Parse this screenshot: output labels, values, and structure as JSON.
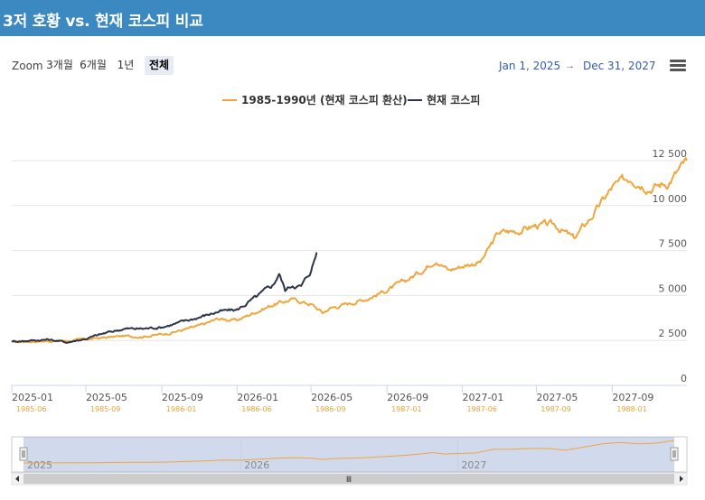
{
  "header": {
    "title": "3저 호황 vs. 현재 코스피 비교"
  },
  "zoom": {
    "label": "Zoom",
    "buttons": [
      "3개월",
      "6개월",
      "1년",
      "전체"
    ],
    "selected": "전체"
  },
  "range": {
    "from": "Jan 1, 2025",
    "arrow": "→",
    "to": "Dec 31, 2027"
  },
  "menu": {
    "icon": "hamburger-menu-icon"
  },
  "colors": {
    "header": "#3c89c2",
    "historical": "#f0a63c",
    "current": "#2b3547"
  },
  "chart_data": {
    "type": "line",
    "ylim": [
      0,
      12500
    ],
    "yticks": [
      0,
      2500,
      5000,
      7500,
      10000,
      12500
    ],
    "ytick_labels": [
      "0",
      "2 500",
      "5 000",
      "7 500",
      "10 000",
      "12 500"
    ],
    "xlim": [
      "2025-01-01",
      "2027-12-31"
    ],
    "xticks": [
      {
        "x": "2025-01-01",
        "label": "2025-01",
        "sub": "1985-06"
      },
      {
        "x": "2025-05-01",
        "label": "2025-05",
        "sub": "1985-09"
      },
      {
        "x": "2025-09-01",
        "label": "2025-09",
        "sub": "1986-01"
      },
      {
        "x": "2026-01-01",
        "label": "2026-01",
        "sub": "1986-06"
      },
      {
        "x": "2026-05-01",
        "label": "2026-05",
        "sub": "1986-09"
      },
      {
        "x": "2026-09-01",
        "label": "2026-09",
        "sub": "1987-01"
      },
      {
        "x": "2027-01-01",
        "label": "2027-01",
        "sub": "1987-06"
      },
      {
        "x": "2027-05-01",
        "label": "2027-05",
        "sub": "1987-09"
      },
      {
        "x": "2027-09-01",
        "label": "2027-09",
        "sub": "1988-01"
      }
    ],
    "grid": true,
    "legend_position": "top-center",
    "series": [
      {
        "name": "1985-1990년 (현재 코스피 환산)",
        "color": "#f0a63c",
        "points": [
          [
            "2025-01-01",
            2400
          ],
          [
            "2025-02-01",
            2450
          ],
          [
            "2025-03-01",
            2470
          ],
          [
            "2025-04-01",
            2480
          ],
          [
            "2025-05-01",
            2560
          ],
          [
            "2025-06-01",
            2660
          ],
          [
            "2025-07-01",
            2740
          ],
          [
            "2025-08-01",
            2720
          ],
          [
            "2025-09-01",
            2840
          ],
          [
            "2025-10-01",
            3050
          ],
          [
            "2025-11-01",
            3300
          ],
          [
            "2025-12-01",
            3700
          ],
          [
            "2026-01-01",
            3620
          ],
          [
            "2026-02-01",
            4100
          ],
          [
            "2026-03-01",
            4500
          ],
          [
            "2026-04-01",
            4780
          ],
          [
            "2026-05-01",
            4520
          ],
          [
            "2026-05-20",
            4050
          ],
          [
            "2026-06-01",
            4300
          ],
          [
            "2026-07-01",
            4550
          ],
          [
            "2026-08-01",
            4850
          ],
          [
            "2026-09-01",
            5300
          ],
          [
            "2026-10-01",
            5800
          ],
          [
            "2026-11-01",
            6500
          ],
          [
            "2026-11-20",
            7050
          ],
          [
            "2026-12-10",
            6400
          ],
          [
            "2027-01-01",
            6650
          ],
          [
            "2027-02-01",
            6900
          ],
          [
            "2027-03-01",
            8500
          ],
          [
            "2027-04-01",
            8600
          ],
          [
            "2027-05-01",
            8900
          ],
          [
            "2027-06-01",
            8900
          ],
          [
            "2027-07-01",
            8150
          ],
          [
            "2027-08-01",
            9500
          ],
          [
            "2027-09-01",
            11000
          ],
          [
            "2027-10-01",
            11600
          ],
          [
            "2027-11-01",
            11000
          ],
          [
            "2027-12-01",
            11300
          ],
          [
            "2027-12-31",
            12500
          ]
        ]
      },
      {
        "name": "현재 코스피",
        "color": "#2b3547",
        "points": [
          [
            "2025-01-01",
            2450
          ],
          [
            "2025-02-01",
            2500
          ],
          [
            "2025-03-01",
            2550
          ],
          [
            "2025-04-01",
            2400
          ],
          [
            "2025-05-01",
            2600
          ],
          [
            "2025-06-01",
            2900
          ],
          [
            "2025-07-01",
            3150
          ],
          [
            "2025-08-01",
            3150
          ],
          [
            "2025-09-01",
            3250
          ],
          [
            "2025-10-01",
            3500
          ],
          [
            "2025-11-01",
            3800
          ],
          [
            "2025-12-01",
            4100
          ],
          [
            "2026-01-01",
            4200
          ],
          [
            "2026-02-01",
            4900
          ],
          [
            "2026-03-01",
            5600
          ],
          [
            "2026-03-10",
            6250
          ],
          [
            "2026-03-20",
            5300
          ],
          [
            "2026-04-01",
            5600
          ],
          [
            "2026-04-15",
            5500
          ],
          [
            "2026-05-01",
            6400
          ],
          [
            "2026-05-10",
            7400
          ]
        ]
      }
    ]
  },
  "navigator": {
    "years": [
      "2025",
      "2026",
      "2027"
    ],
    "grip_label": "Ⅲ"
  }
}
